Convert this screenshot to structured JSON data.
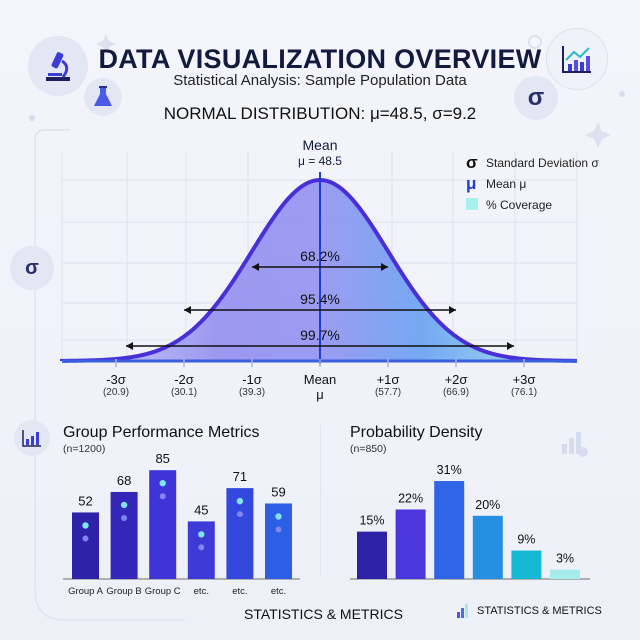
{
  "header": {
    "title": "DATA VISUALIZATION OVERVIEW",
    "subtitle": "Statistical Analysis: Sample Population Data",
    "distribution_label": "NORMAL DISTRIBUTION: μ=48.5, σ=9.2",
    "sigma_symbol": "σ"
  },
  "chart_data": [
    {
      "type": "area",
      "title": "NORMAL DISTRIBUTION: μ=48.5, σ=9.2",
      "mean": 48.5,
      "sd": 9.2,
      "mean_label": "Mean",
      "mean_value_label": "μ = 48.5",
      "ticks": [
        {
          "label": "-3σ",
          "value": "(20.9)",
          "x": 20.9
        },
        {
          "label": "-2σ",
          "value": "(30.1)",
          "x": 30.1
        },
        {
          "label": "-1σ",
          "value": "(39.3)",
          "x": 39.3
        },
        {
          "label": "Mean",
          "value": "μ",
          "x": 48.5
        },
        {
          "label": "+1σ",
          "value": "(57.7)",
          "x": 57.7
        },
        {
          "label": "+2σ",
          "value": "(66.9)",
          "x": 66.9
        },
        {
          "label": "+3σ",
          "value": "(76.1)",
          "x": 76.1
        }
      ],
      "intervals": [
        {
          "label": "68.2%",
          "k": 1
        },
        {
          "label": "95.4%",
          "k": 2
        },
        {
          "label": "99.7%",
          "k": 3
        }
      ],
      "legend": [
        {
          "symbol": "σ",
          "label": "Standard Deviation σ"
        },
        {
          "symbol": "μ",
          "label": "Mean μ"
        },
        {
          "symbol": "",
          "label": "% Coverage"
        }
      ],
      "grid": true,
      "legend_position": "top-right",
      "colors": {
        "curve": "#4a2fd8",
        "mean_line": "#1b3fd6",
        "coverage": "#a8f0ec"
      }
    },
    {
      "type": "bar",
      "title": "Group Performance Metrics",
      "subtitle": "(n=1200)",
      "categories": [
        "Group A",
        "Group B",
        "Group C",
        "etc.",
        "etc.",
        "etc."
      ],
      "values": [
        52,
        68,
        85,
        45,
        71,
        59
      ],
      "labels": [
        "52",
        "68",
        "85",
        "45",
        "71",
        "59"
      ],
      "colors": [
        "#2e22a8",
        "#3326b8",
        "#3f34d8",
        "#3e3ad8",
        "#3548de",
        "#2c5ee6"
      ]
    },
    {
      "type": "bar",
      "title": "Probability Density",
      "subtitle": "(n=850)",
      "values": [
        15,
        22,
        31,
        20,
        9,
        3
      ],
      "labels": [
        "15%",
        "22%",
        "31%",
        "20%",
        "9%",
        "3%"
      ],
      "colors": [
        "#2e22a8",
        "#4a38dc",
        "#3064e6",
        "#2590e2",
        "#17b8d4",
        "#a6ecec"
      ]
    }
  ],
  "footer": {
    "center": "STATISTICS & METRICS",
    "right": "STATISTICS & METRICS"
  },
  "icons": [
    "microscope-icon",
    "flask-icon",
    "chart-trend-icon",
    "sigma-icon",
    "bar-chart-icon"
  ]
}
